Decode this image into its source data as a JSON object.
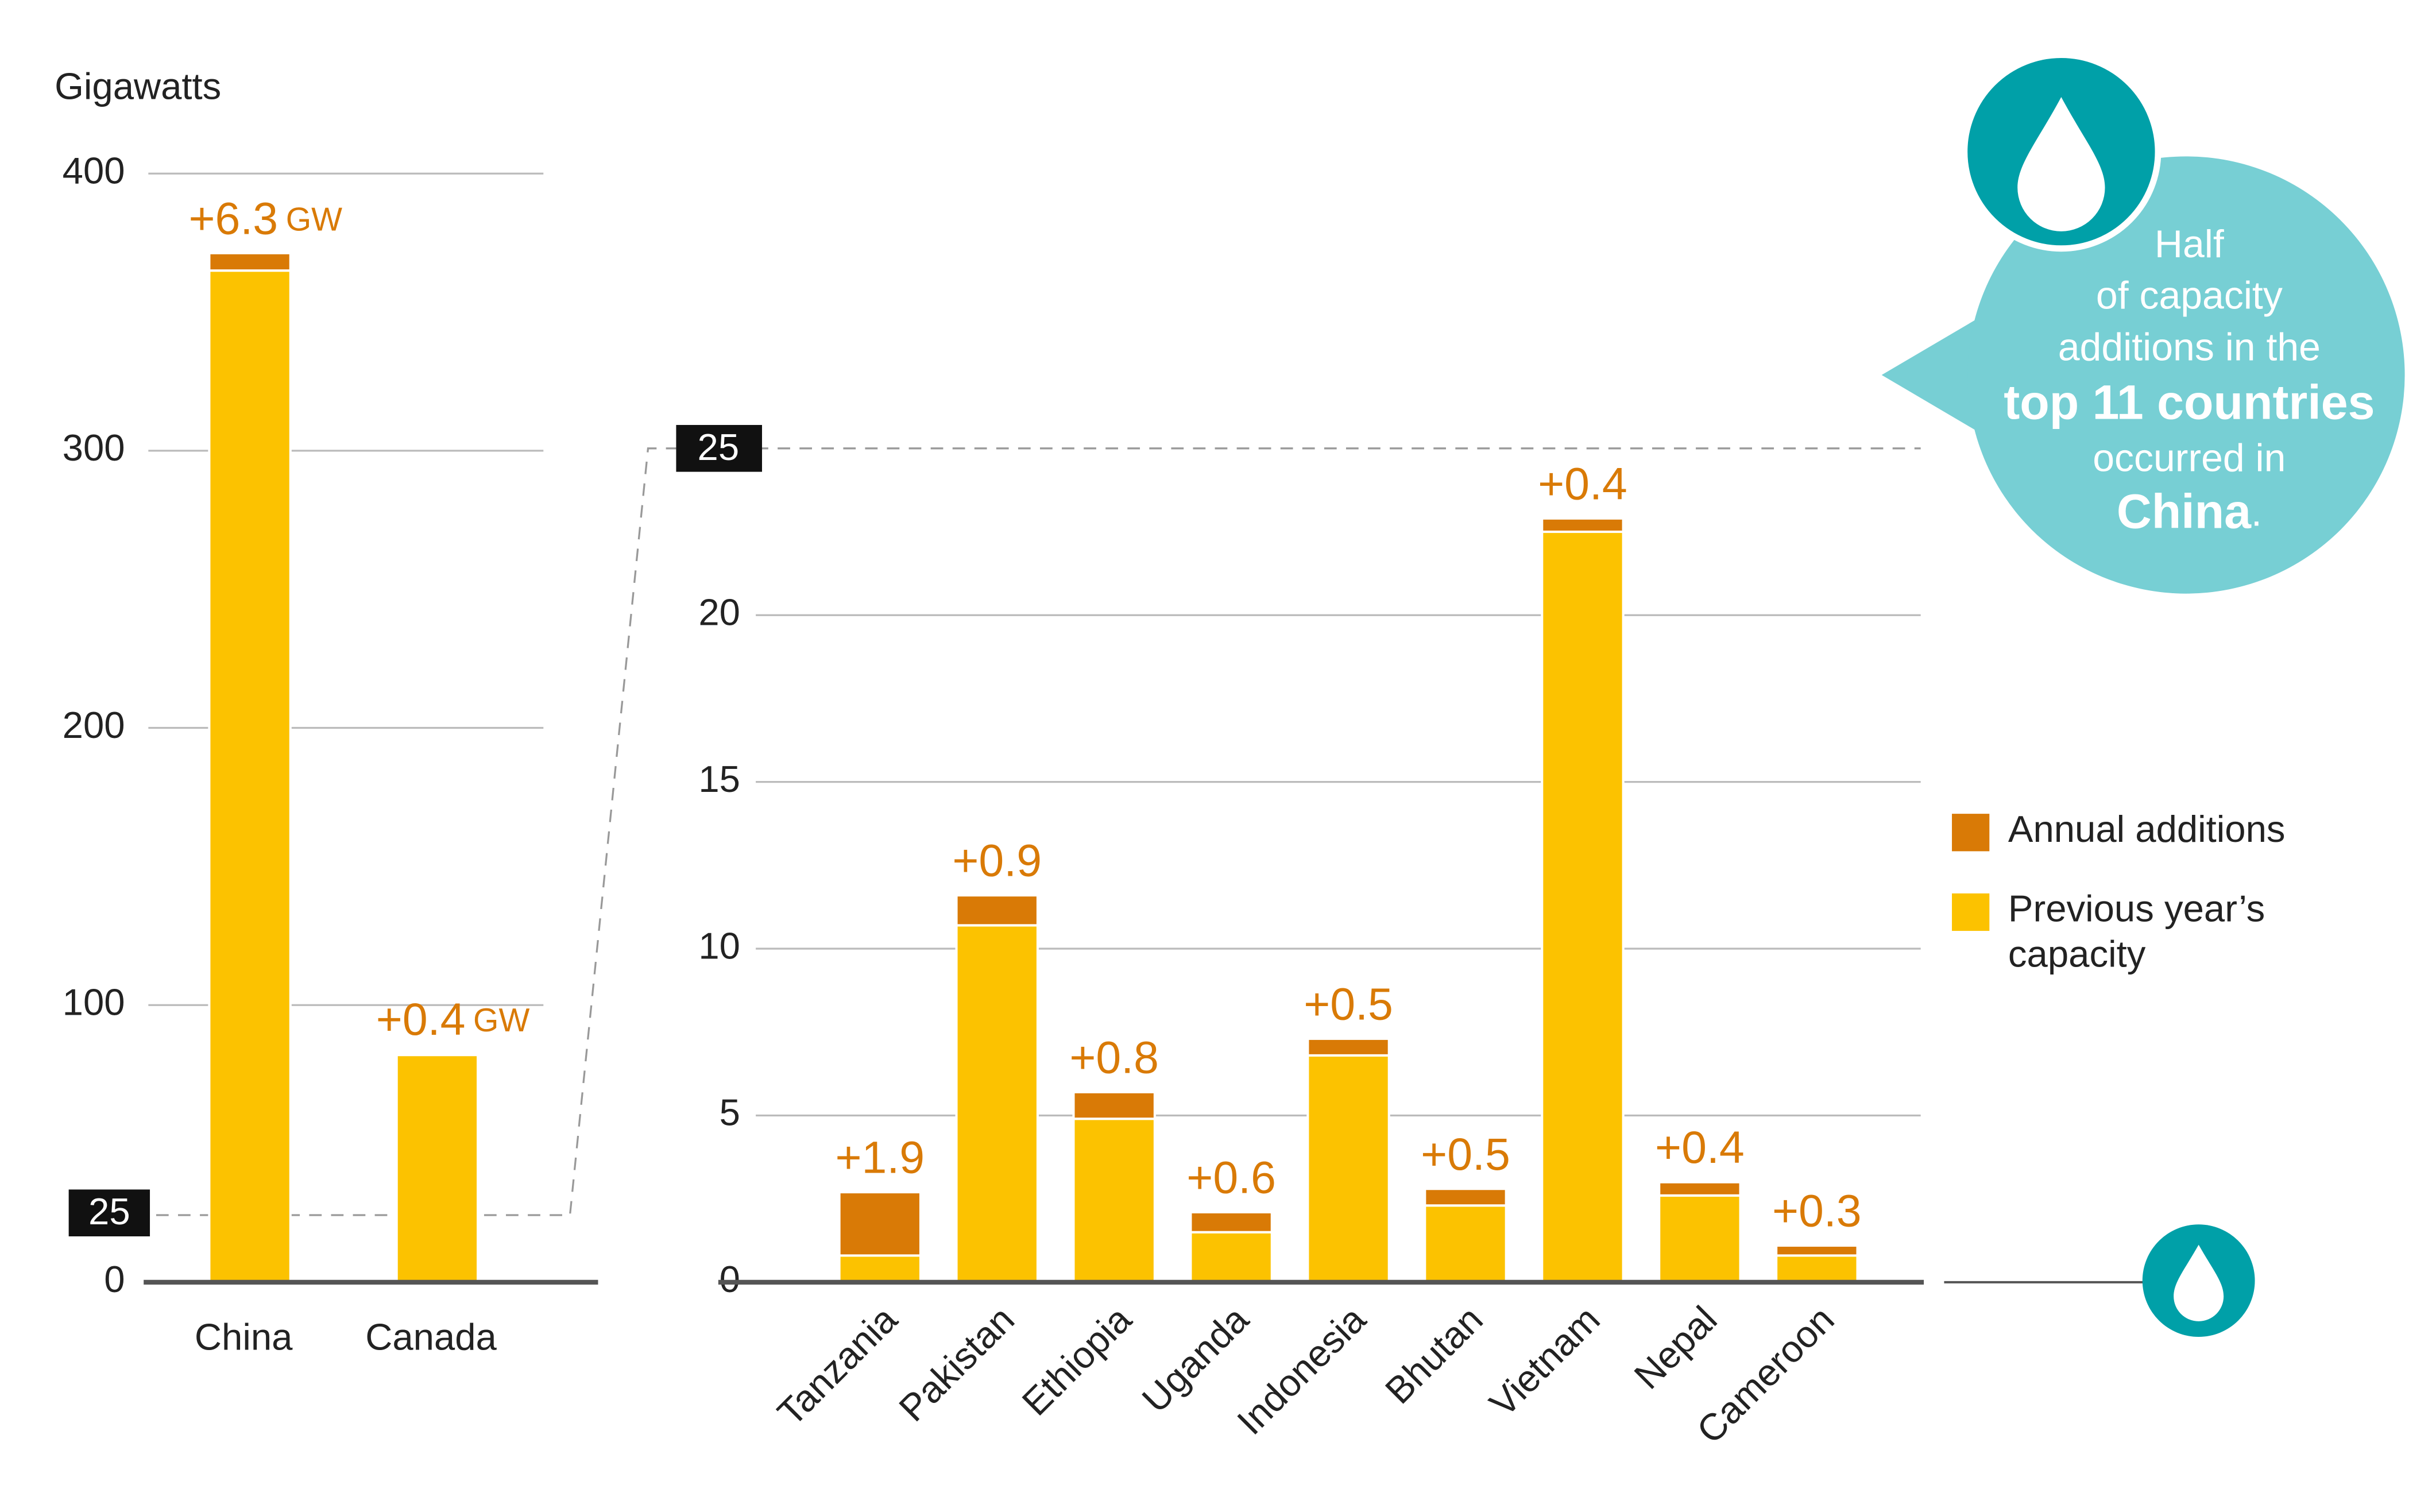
{
  "y_axis_label": "Gigawatts",
  "annotation": [
    "Half",
    "of capacity",
    "additions in the",
    "top 11 countries",
    "occurred in",
    "China",
    "."
  ],
  "chart_data": [
    {
      "type": "stacked-bar",
      "categories": [
        "China",
        "Canada"
      ],
      "series": [
        {
          "name": "Previous year’s capacity",
          "color": "#fcc200",
          "values": [
            365,
            82
          ]
        },
        {
          "name": "Annual additions",
          "color": "#d97a06",
          "values": [
            6.3,
            0.4
          ],
          "value_labels": [
            "+6.3",
            "+0.4"
          ]
        }
      ],
      "value_unit": "GW",
      "ylim": [
        0,
        400
      ],
      "yticks": [
        0,
        100,
        200,
        300,
        400
      ],
      "grid": true,
      "zoom_marker": 25
    },
    {
      "type": "stacked-bar",
      "categories": [
        "Tanzania",
        "Pakistan",
        "Ethiopia",
        "Uganda",
        "Indonesia",
        "Bhutan",
        "Vietnam",
        "Nepal",
        "Cameroon"
      ],
      "series": [
        {
          "name": "Previous year’s capacity",
          "color": "#fcc200",
          "values": [
            0.8,
            10.7,
            4.9,
            1.5,
            6.8,
            2.3,
            22.5,
            2.6,
            0.8
          ]
        },
        {
          "name": "Annual additions",
          "color": "#d97a06",
          "values": [
            1.9,
            0.9,
            0.8,
            0.6,
            0.5,
            0.5,
            0.4,
            0.4,
            0.3
          ],
          "value_labels": [
            "+1.9",
            "+0.9",
            "+0.8",
            "+0.6",
            "+0.5",
            "+0.5",
            "+0.4",
            "+0.4",
            "+0.3"
          ]
        }
      ],
      "ylim": [
        0,
        25
      ],
      "yticks": [
        0,
        5,
        10,
        15,
        20,
        25
      ],
      "grid": true,
      "legend": "right"
    }
  ]
}
